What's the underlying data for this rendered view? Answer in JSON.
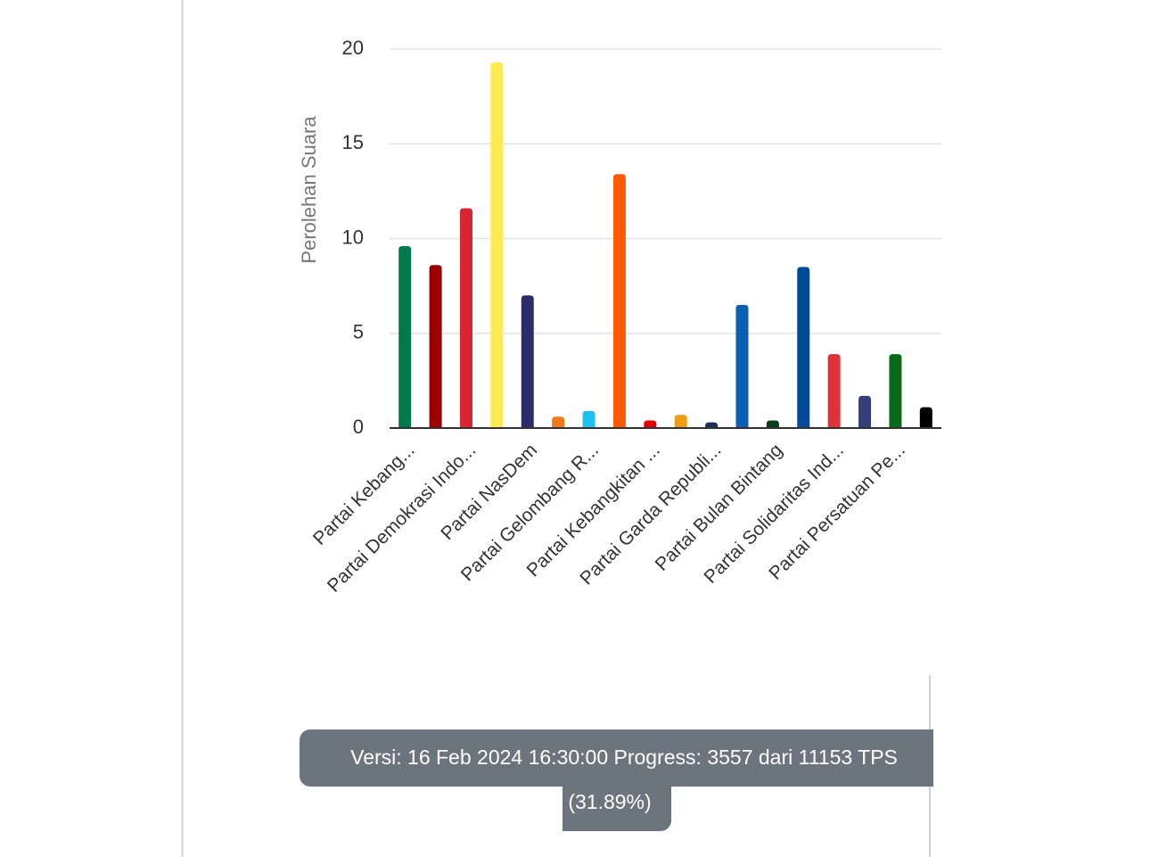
{
  "chart_data": {
    "type": "bar",
    "y_axis_label": "Perolehan Suara",
    "categories": [
      "Partai Kebang...",
      null,
      "Partai Demokrasi Indo...",
      null,
      "Partai NasDem",
      null,
      "Partai Gelombang R...",
      null,
      "Partai Kebangkitan ...",
      null,
      "Partai Garda Republi...",
      null,
      "Partai Bulan Bintang",
      null,
      "Partai Solidaritas Ind...",
      null,
      "Partai Persatuan Pe...",
      null
    ],
    "values": [
      9.6,
      8.6,
      11.6,
      19.3,
      7.0,
      0.6,
      0.9,
      13.4,
      0.4,
      0.7,
      0.3,
      6.5,
      0.4,
      8.5,
      3.9,
      1.7,
      3.9,
      1.1
    ],
    "colors": [
      "#007a4d",
      "#9b0000",
      "#d92632",
      "#ffeb50",
      "#2b2d6b",
      "#f07a1a",
      "#1ec0f0",
      "#ff5a00",
      "#e00000",
      "#f39c12",
      "#1a2f5a",
      "#0a5fb0",
      "#0a3d1a",
      "#004a9a",
      "#e0303a",
      "#34407a",
      "#0a6a1a",
      "#000000"
    ],
    "ylim": [
      0,
      20
    ],
    "yticks": [
      0,
      5,
      10,
      15,
      20
    ],
    "grid": true
  },
  "footer": [
    "Versi: 16 Feb 2024 16:30:00 Progress: 3557 dari 11153 TPS",
    "(31.89%)"
  ]
}
